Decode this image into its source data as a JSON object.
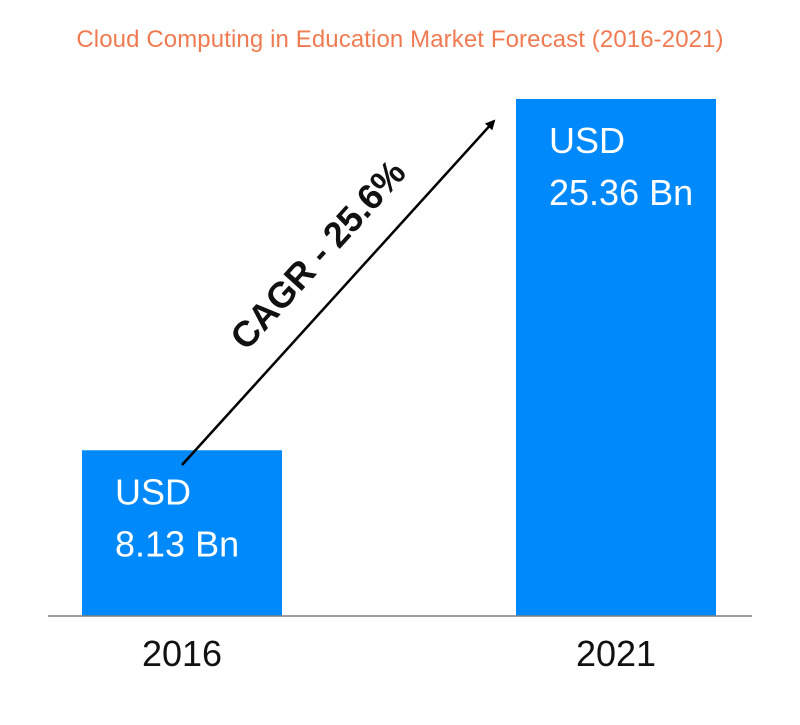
{
  "colors": {
    "title": "#f07b52",
    "bar": "#0089fa",
    "baseline": "#7f7f7f",
    "arrow": "#000000",
    "text": "#111111"
  },
  "chart_data": {
    "type": "bar",
    "title": "Cloud Computing in Education Market Forecast (2016-2021)",
    "xlabel": "",
    "ylabel": "",
    "categories": [
      "2016",
      "2021"
    ],
    "values": [
      8.13,
      25.36
    ],
    "unit": "USD Bn",
    "data_labels": [
      [
        "USD",
        "8.13 Bn"
      ],
      [
        "USD",
        "25.36 Bn"
      ]
    ],
    "ylim": [
      0,
      25.36
    ],
    "grid": false,
    "legend": "none",
    "annotation": {
      "text": "CAGR - 25.6%",
      "type": "arrow"
    }
  }
}
